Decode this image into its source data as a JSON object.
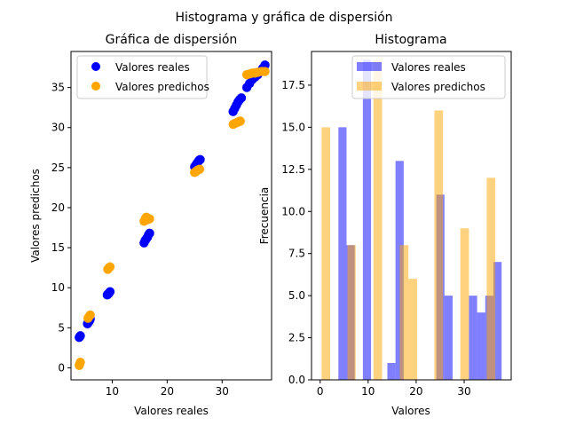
{
  "figure": {
    "suptitle": "Histograma y gráfica de dispersión"
  },
  "colors": {
    "real": "#0000ff",
    "predicted": "#ffa500"
  },
  "chart_data": [
    {
      "type": "scatter",
      "title": "Gráfica de dispersión",
      "xlabel": "Valores reales",
      "ylabel": "Valores predichos",
      "xlim": [
        2.5,
        39.0
      ],
      "ylim": [
        -1.5,
        39.5
      ],
      "xticks": [
        10,
        20,
        30
      ],
      "yticks": [
        0,
        5,
        10,
        15,
        20,
        25,
        30,
        35
      ],
      "legend_position": "top-left",
      "series": [
        {
          "name": "Valores reales",
          "color": "#0000ff",
          "points": [
            [
              4.0,
              3.8
            ],
            [
              4.1,
              3.9
            ],
            [
              4.2,
              4.0
            ],
            [
              5.5,
              5.5
            ],
            [
              5.7,
              5.7
            ],
            [
              5.9,
              5.9
            ],
            [
              6.0,
              6.1
            ],
            [
              9.1,
              9.1
            ],
            [
              9.2,
              9.2
            ],
            [
              9.4,
              9.3
            ],
            [
              9.6,
              9.5
            ],
            [
              15.8,
              15.6
            ],
            [
              16.0,
              15.9
            ],
            [
              16.2,
              16.1
            ],
            [
              16.4,
              16.3
            ],
            [
              16.6,
              16.6
            ],
            [
              16.8,
              16.8
            ],
            [
              25.0,
              25.1
            ],
            [
              25.2,
              25.3
            ],
            [
              25.4,
              25.5
            ],
            [
              25.6,
              25.7
            ],
            [
              25.8,
              25.9
            ],
            [
              26.0,
              26.0
            ],
            [
              32.0,
              32.0
            ],
            [
              32.3,
              32.4
            ],
            [
              32.6,
              32.8
            ],
            [
              32.9,
              33.2
            ],
            [
              33.2,
              33.5
            ],
            [
              33.5,
              33.7
            ],
            [
              34.5,
              35.0
            ],
            [
              35.0,
              35.5
            ],
            [
              35.5,
              36.0
            ],
            [
              36.0,
              36.3
            ],
            [
              36.5,
              36.6
            ],
            [
              37.0,
              37.0
            ],
            [
              37.4,
              37.4
            ],
            [
              37.8,
              37.8
            ]
          ]
        },
        {
          "name": "Valores predichos",
          "color": "#ffa500",
          "points": [
            [
              4.0,
              0.3
            ],
            [
              4.1,
              0.5
            ],
            [
              4.2,
              0.7
            ],
            [
              5.6,
              6.2
            ],
            [
              5.8,
              6.4
            ],
            [
              6.0,
              6.6
            ],
            [
              9.2,
              12.3
            ],
            [
              9.4,
              12.5
            ],
            [
              9.6,
              12.6
            ],
            [
              15.8,
              18.3
            ],
            [
              16.0,
              18.6
            ],
            [
              16.2,
              18.8
            ],
            [
              16.4,
              18.5
            ],
            [
              16.8,
              18.6
            ],
            [
              25.0,
              24.4
            ],
            [
              25.2,
              24.5
            ],
            [
              25.4,
              24.6
            ],
            [
              25.6,
              24.7
            ],
            [
              25.9,
              24.8
            ],
            [
              32.0,
              30.4
            ],
            [
              32.3,
              30.5
            ],
            [
              32.6,
              30.6
            ],
            [
              32.9,
              30.7
            ],
            [
              33.3,
              30.8
            ],
            [
              34.5,
              36.6
            ],
            [
              35.0,
              36.7
            ],
            [
              35.5,
              36.8
            ],
            [
              36.0,
              36.8
            ],
            [
              36.5,
              36.9
            ],
            [
              37.2,
              37.0
            ],
            [
              37.8,
              37.0
            ]
          ]
        }
      ]
    },
    {
      "type": "bar",
      "title": "Histograma",
      "xlabel": "Valores",
      "ylabel": "Frecuencia",
      "xlim": [
        -1.8,
        39.8
      ],
      "ylim": [
        0,
        19.5
      ],
      "xticks": [
        0,
        10,
        20,
        30
      ],
      "yticks": [
        0.0,
        2.5,
        5.0,
        7.5,
        10.0,
        12.5,
        15.0,
        17.5
      ],
      "ytick_labels": [
        "0.0",
        "2.5",
        "5.0",
        "7.5",
        "10.0",
        "12.5",
        "15.0",
        "17.5"
      ],
      "legend_position": "top-right",
      "alpha": 0.5,
      "series": [
        {
          "name": "Valores reales",
          "color": "#0000ff",
          "bins": [
            {
              "x0": 3.8,
              "x1": 5.5,
              "count": 15
            },
            {
              "x0": 5.5,
              "x1": 7.2,
              "count": 8
            },
            {
              "x0": 8.9,
              "x1": 10.6,
              "count": 19
            },
            {
              "x0": 14.0,
              "x1": 15.7,
              "count": 1
            },
            {
              "x0": 15.7,
              "x1": 17.4,
              "count": 13
            },
            {
              "x0": 24.2,
              "x1": 25.9,
              "count": 11
            },
            {
              "x0": 25.9,
              "x1": 27.6,
              "count": 5
            },
            {
              "x0": 31.0,
              "x1": 32.7,
              "count": 5
            },
            {
              "x0": 32.7,
              "x1": 34.4,
              "count": 4
            },
            {
              "x0": 34.4,
              "x1": 36.1,
              "count": 5
            },
            {
              "x0": 36.1,
              "x1": 37.8,
              "count": 7
            }
          ]
        },
        {
          "name": "Valores predichos",
          "color": "#ffa500",
          "bins": [
            {
              "x0": 0.3,
              "x1": 2.1,
              "count": 15
            },
            {
              "x0": 5.7,
              "x1": 7.4,
              "count": 8
            },
            {
              "x0": 11.1,
              "x1": 12.9,
              "count": 19
            },
            {
              "x0": 16.6,
              "x1": 18.4,
              "count": 8
            },
            {
              "x0": 18.4,
              "x1": 20.2,
              "count": 6
            },
            {
              "x0": 23.8,
              "x1": 25.6,
              "count": 16
            },
            {
              "x0": 29.2,
              "x1": 31.0,
              "count": 9
            },
            {
              "x0": 34.7,
              "x1": 36.5,
              "count": 12
            }
          ]
        }
      ]
    }
  ]
}
